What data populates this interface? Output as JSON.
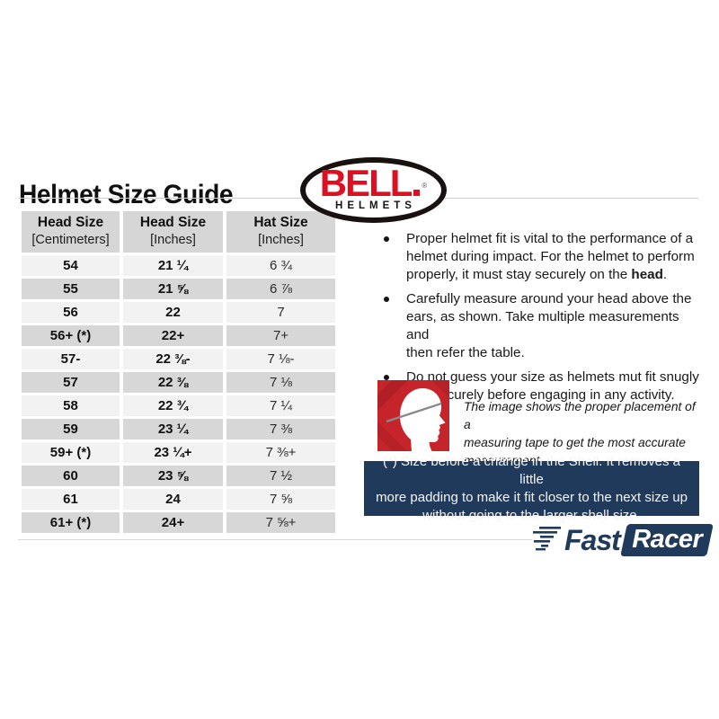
{
  "title": "Helmet Size Guide",
  "bell": {
    "name": "BELL",
    "reg": "®",
    "sub": "HELMETS"
  },
  "table": {
    "headers": [
      {
        "line1": "Head Size",
        "line2": "[Centimeters]"
      },
      {
        "line1": "Head Size",
        "line2": "[Inches]"
      },
      {
        "line1": "Hat Size",
        "line2": "[Inches]"
      }
    ],
    "rows": [
      [
        "54",
        "21 ¼",
        "6 ¾"
      ],
      [
        "55",
        "21 ⅝",
        "6 ⅞"
      ],
      [
        "56",
        "22",
        "7"
      ],
      [
        "56+ (*)",
        "22+",
        "7+"
      ],
      [
        "57-",
        "22 ⅜-",
        "7 ⅛-"
      ],
      [
        "57",
        "22 ⅜",
        "7 ⅛"
      ],
      [
        "58",
        "22 ¾",
        "7 ¼"
      ],
      [
        "59",
        "23 ¼",
        "7 ⅜"
      ],
      [
        "59+ (*)",
        "23 ¼+",
        "7 ⅜+"
      ],
      [
        "60",
        "23 ⅝",
        "7 ½"
      ],
      [
        "61",
        "24",
        "7 ⅝"
      ],
      [
        "61+ (*)",
        "24+",
        "7 ⅝+"
      ]
    ]
  },
  "bullets": [
    {
      "pre": "Proper helmet fit is vital to the performance of a\nhelmet during impact. For the helmet to perform\nproperly, it must stay securely on the ",
      "bold": "head",
      "post": "."
    },
    {
      "pre": "Carefully measure around your head above the\nears, as shown. Take multiple measurements and\nthen refer the table.",
      "bold": "",
      "post": ""
    },
    {
      "pre": "Do not guess your size as helmets mut fit snugly\nand securely before engaging in any activity.",
      "bold": "",
      "post": ""
    }
  ],
  "figure_caption": "The image shows the proper placement of a\nmeasuring tape to get the most accurate\nmeasurement.",
  "note": "(*) Size before a change in the Shell. It removes a little\nmore padding to make it fit closer to the next size up\nwithout going to the larger shell size.",
  "footer": {
    "fast": "Fast",
    "racer": "Racer"
  },
  "colors": {
    "bell_red": "#dd1021",
    "navy": "#203a5c",
    "figure_red": "#c5242b",
    "row_light": "#f2f2f2",
    "row_dark": "#d7d7d7",
    "header_bg": "#d6d6d6"
  }
}
